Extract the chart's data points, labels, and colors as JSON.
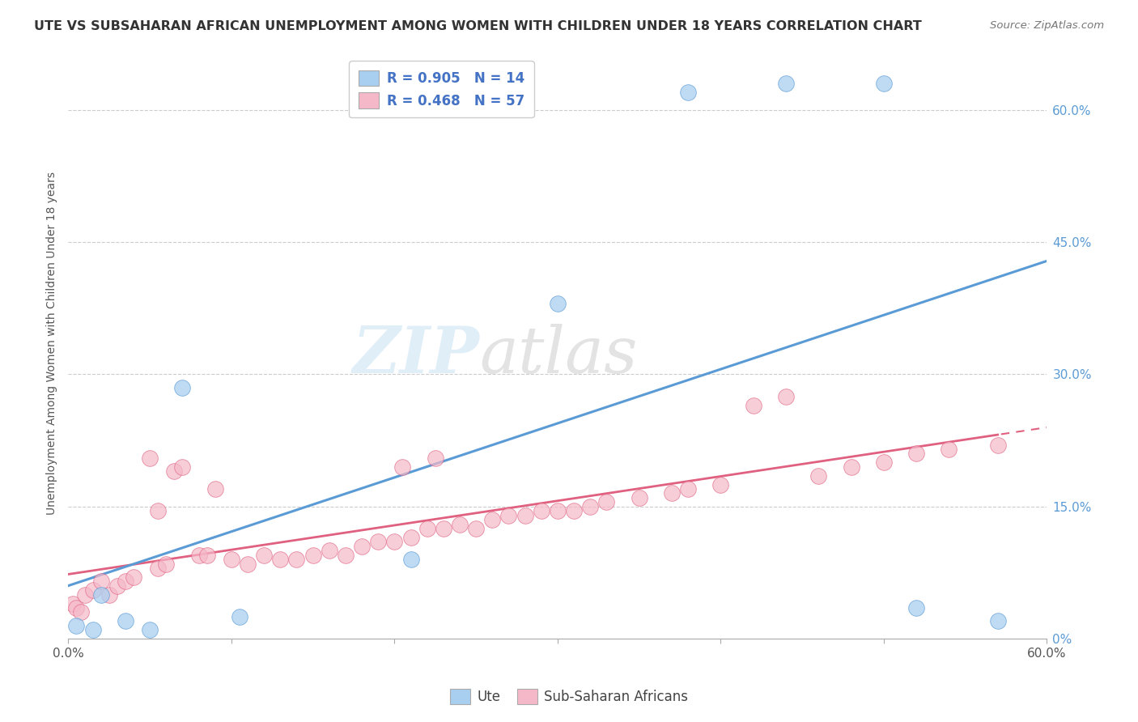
{
  "title": "UTE VS SUBSAHARAN AFRICAN UNEMPLOYMENT AMONG WOMEN WITH CHILDREN UNDER 18 YEARS CORRELATION CHART",
  "source": "Source: ZipAtlas.com",
  "ylabel": "Unemployment Among Women with Children Under 18 years",
  "legend_bottom": [
    "Ute",
    "Sub-Saharan Africans"
  ],
  "legend_r1": "R = 0.905",
  "legend_n1": "N = 14",
  "legend_r2": "R = 0.468",
  "legend_n2": "N = 57",
  "ute_color": "#A8CFF0",
  "ssa_color": "#F5B8C8",
  "ute_line_color": "#5B9BD5",
  "ssa_line_color": "#E06080",
  "legend_text_color": "#4472C4",
  "background_color": "#FFFFFF",
  "grid_color": "#CCCCCC",
  "axis_color": "#AAAAAA",
  "label_color": "#555555",
  "ute_x": [
    0.5,
    1.5,
    2.0,
    3.5,
    5.0,
    7.0,
    10.5,
    21.0,
    30.0,
    38.0,
    44.0,
    50.0,
    52.0,
    57.0
  ],
  "ute_y": [
    1.5,
    1.0,
    5.0,
    2.0,
    1.0,
    28.5,
    2.5,
    9.0,
    38.0,
    62.0,
    63.0,
    63.0,
    3.5,
    2.0
  ],
  "ssa_x": [
    0.3,
    0.5,
    0.8,
    1.0,
    1.5,
    2.0,
    2.5,
    3.0,
    3.5,
    4.0,
    5.0,
    5.5,
    6.0,
    6.5,
    7.0,
    8.0,
    8.5,
    9.0,
    10.0,
    11.0,
    12.0,
    13.0,
    14.0,
    15.0,
    16.0,
    17.0,
    18.0,
    19.0,
    20.0,
    21.0,
    22.0,
    23.0,
    24.0,
    25.0,
    26.0,
    27.0,
    28.0,
    29.0,
    30.0,
    31.0,
    32.0,
    33.0,
    35.0,
    37.0,
    38.0,
    40.0,
    42.0,
    44.0,
    46.0,
    48.0,
    50.0,
    52.0,
    54.0,
    57.0,
    20.5,
    22.5,
    5.5
  ],
  "ssa_y": [
    4.0,
    3.5,
    3.0,
    5.0,
    5.5,
    6.5,
    5.0,
    6.0,
    6.5,
    7.0,
    20.5,
    8.0,
    8.5,
    19.0,
    19.5,
    9.5,
    9.5,
    17.0,
    9.0,
    8.5,
    9.5,
    9.0,
    9.0,
    9.5,
    10.0,
    9.5,
    10.5,
    11.0,
    11.0,
    11.5,
    12.5,
    12.5,
    13.0,
    12.5,
    13.5,
    14.0,
    14.0,
    14.5,
    14.5,
    14.5,
    15.0,
    15.5,
    16.0,
    16.5,
    17.0,
    17.5,
    26.5,
    27.5,
    18.5,
    19.5,
    20.0,
    21.0,
    21.5,
    22.0,
    19.5,
    20.5,
    14.5
  ],
  "xmin": 0.0,
  "xmax": 60.0,
  "ymin": 0.0,
  "ymax": 67.0,
  "ytick_vals": [
    0,
    15,
    30,
    45,
    60
  ],
  "ytick_labels": [
    "0%",
    "15.0%",
    "30.0%",
    "45.0%",
    "60.0%"
  ]
}
